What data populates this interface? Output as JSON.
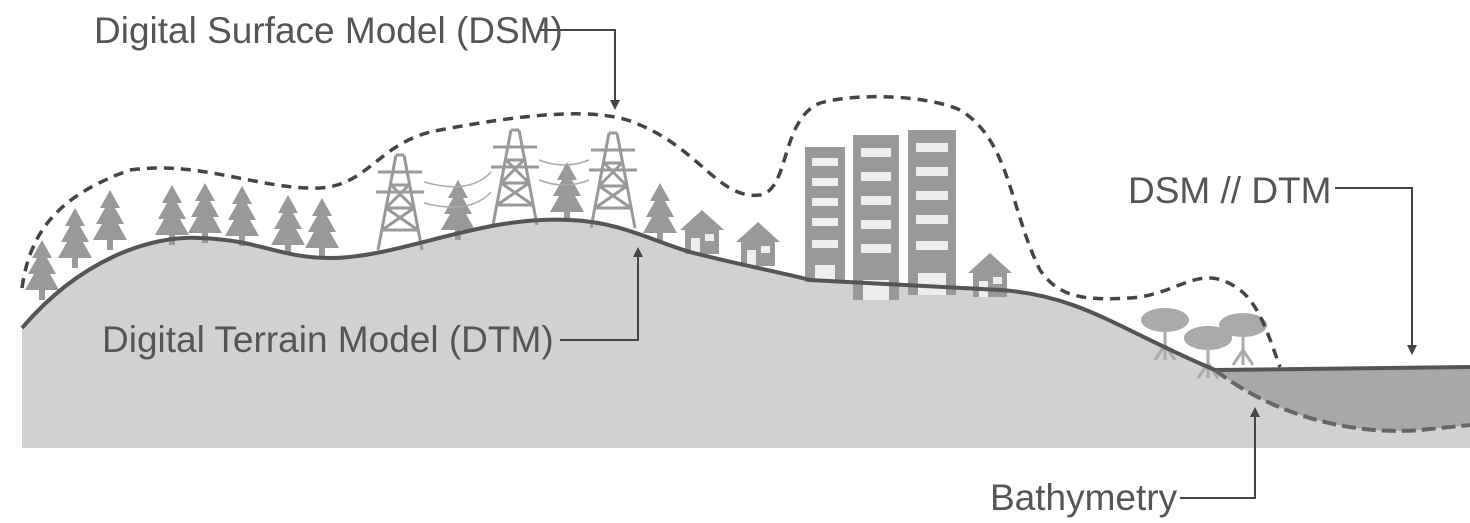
{
  "labels": {
    "dsm": "Digital Surface Model (DSM)",
    "dtm": "Digital Terrain Model (DTM)",
    "dsm_dtm": "DSM // DTM",
    "bathymetry": "Bathymetry"
  }
}
